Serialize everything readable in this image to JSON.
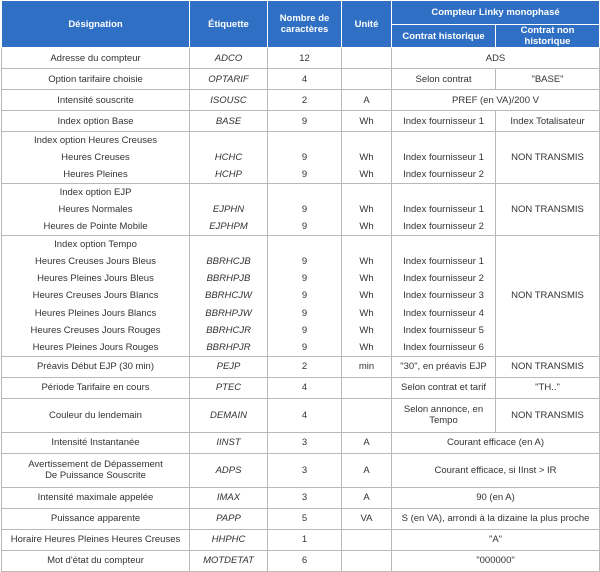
{
  "header": {
    "designation": "Désignation",
    "etiquette": "Étiquette",
    "nombre": "Nombre de caractères",
    "unite": "Unité",
    "compteur": "Compteur Linky monophasé",
    "historique": "Contrat historique",
    "non_historique": "Contrat non historique"
  },
  "rows": [
    {
      "designation": "Adresse du compteur",
      "etiquette": "ADCO",
      "nombre": 12,
      "compteur": "ADS"
    },
    {
      "designation": "Option tarifaire choisie",
      "etiquette": "OPTARIF",
      "nombre": 4,
      "historique": "Selon contrat",
      "non_historique": "\"BASE\""
    },
    {
      "designation": "Intensité souscrite",
      "etiquette": "ISOUSC",
      "nombre": 2,
      "unite": "A",
      "compteur": "PREF (en VA)/200 V"
    },
    {
      "designation": "Index option Base",
      "etiquette": "BASE",
      "nombre": 9,
      "unite": "Wh",
      "historique": "Index fournisseur 1",
      "non_historique": "Index Totalisateur"
    },
    {
      "designation": "Index option Heures Creuses",
      "non_historique": "NON TRANSMIS",
      "items": [
        {
          "designation": "Heures Creuses",
          "etiquette": "HCHC",
          "nombre": 9,
          "unite": "Wh",
          "historique": "Index fournisseur 1"
        },
        {
          "designation": "Heures Pleines",
          "etiquette": "HCHP",
          "nombre": 9,
          "unite": "Wh",
          "historique": "Index fournisseur 2"
        }
      ]
    },
    {
      "designation": "Index option EJP",
      "non_historique": "NON TRANSMIS",
      "items": [
        {
          "designation": "Heures Normales",
          "etiquette": "EJPHN",
          "nombre": 9,
          "unite": "Wh",
          "historique": "Index fournisseur 1"
        },
        {
          "designation": "Heures de Pointe Mobile",
          "etiquette": "EJPHPM",
          "nombre": 9,
          "unite": "Wh",
          "historique": "Index fournisseur 2"
        }
      ]
    },
    {
      "designation": "Index option Tempo",
      "non_historique": "NON TRANSMIS",
      "items": [
        {
          "designation": "Heures Creuses Jours Bleus",
          "etiquette": "BBRHCJB",
          "nombre": 9,
          "unite": "Wh",
          "historique": "Index fournisseur 1"
        },
        {
          "designation": "Heures Pleines Jours Bleus",
          "etiquette": "BBRHPJB",
          "nombre": 9,
          "unite": "Wh",
          "historique": "Index fournisseur 2"
        },
        {
          "designation": "Heures Creuses Jours Blancs",
          "etiquette": "BBRHCJW",
          "nombre": 9,
          "unite": "Wh",
          "historique": "Index fournisseur 3"
        },
        {
          "designation": "Heures Pleines Jours Blancs",
          "etiquette": "BBRHPJW",
          "nombre": 9,
          "unite": "Wh",
          "historique": "Index fournisseur 4"
        },
        {
          "designation": "Heures Creuses Jours Rouges",
          "etiquette": "BBRHCJR",
          "nombre": 9,
          "unite": "Wh",
          "historique": "Index fournisseur 5"
        },
        {
          "designation": "Heures Pleines Jours Rouges",
          "etiquette": "BBRHPJR",
          "nombre": 9,
          "unite": "Wh",
          "historique": "Index fournisseur 6"
        }
      ]
    },
    {
      "designation": "Préavis Début EJP (30 min)",
      "etiquette": "PEJP",
      "nombre": 2,
      "unite": "min",
      "historique": "\"30\", en préavis EJP",
      "non_historique": "NON TRANSMIS"
    },
    {
      "designation": "Période Tarifaire en cours",
      "etiquette": "PTEC",
      "nombre": 4,
      "historique": "Selon contrat et tarif",
      "non_historique": "\"TH..\""
    },
    {
      "designation": "Couleur du lendemain",
      "etiquette": "DEMAIN",
      "nombre": 4,
      "historique": "Selon annonce, en Tempo",
      "non_historique": "NON TRANSMIS"
    },
    {
      "designation": "Intensité Instantanée",
      "etiquette": "IINST",
      "nombre": 3,
      "unite": "A",
      "compteur": "Courant efficace (en A)"
    },
    {
      "designation": [
        "Avertissement de Dépassement",
        "De Puissance Souscrite"
      ],
      "etiquette": "ADPS",
      "nombre": 3,
      "unite": "A",
      "compteur": "Courant efficace, si IInst > IR"
    },
    {
      "designation": "Intensité maximale appelée",
      "etiquette": "IMAX",
      "nombre": 3,
      "unite": "A",
      "compteur": "90 (en A)"
    },
    {
      "designation": "Puissance apparente",
      "etiquette": "PAPP",
      "nombre": 5,
      "unite": "VA",
      "compteur": "S (en VA), arrondi à la dizaine la plus proche"
    },
    {
      "designation": "Horaire Heures Pleines Heures Creuses",
      "etiquette": "HHPHC",
      "nombre": 1,
      "compteur": "\"A\""
    },
    {
      "designation": "Mot d'état du compteur",
      "etiquette": "MOTDETAT",
      "nombre": 6,
      "compteur": "\"000000\""
    }
  ]
}
